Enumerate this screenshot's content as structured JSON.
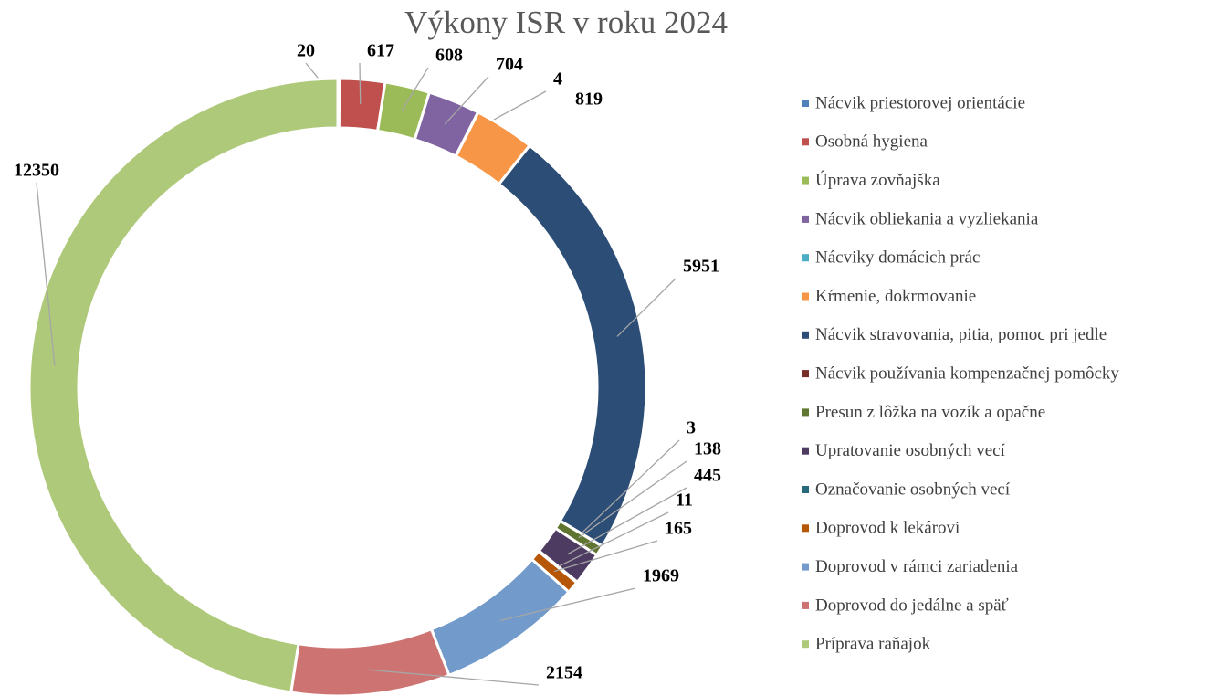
{
  "chart_data": {
    "type": "donut",
    "title": "Výkony ISR v roku 2024",
    "categories": [
      "Nácvik priestorovej orientácie",
      "Osobná hygiena",
      "Úprava zovňajška",
      "Nácvik obliekania a vyzliekania",
      "Nácviky domácich prác",
      "Kŕmenie, dokrmovanie",
      "Nácvik stravovania, pitia, pomoc pri jedle",
      "Nácvik používania kompenzačnej pomôcky",
      "Presun z lôžka na vozík a opačne",
      "Upratovanie osobných vecí",
      "Označovanie osobných vecí",
      "Doprovod k lekárovi",
      "Doprovod v rámci zariadenia",
      "Doprovod do jedálne a späť",
      "Príprava raňajok"
    ],
    "values": [
      20,
      617,
      608,
      704,
      4,
      819,
      5951,
      3,
      138,
      445,
      11,
      165,
      1969,
      2154,
      12350
    ],
    "colors": [
      "#4f81bd",
      "#c0504d",
      "#9bbb59",
      "#8064a2",
      "#4bacc6",
      "#f79646",
      "#2c4d75",
      "#772c2a",
      "#5f7530",
      "#4d3b62",
      "#276a7c",
      "#b65708",
      "#729aca",
      "#cd7371",
      "#afc97a"
    ],
    "legend": "right"
  }
}
